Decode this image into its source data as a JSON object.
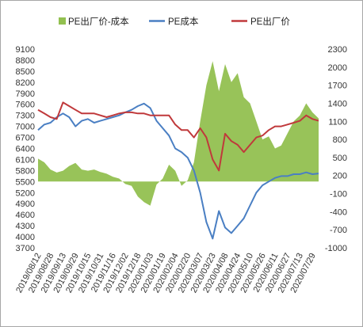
{
  "chart_data": {
    "type": "area+line",
    "title": "",
    "legend": {
      "position": "top",
      "entries": [
        {
          "label": "PE出厂价-成本",
          "kind": "area",
          "color": "#92c050"
        },
        {
          "label": "PE成本",
          "kind": "line",
          "color": "#4a7fc3"
        },
        {
          "label": "PE出厂价",
          "kind": "line",
          "color": "#c0393b"
        }
      ]
    },
    "left_axis": {
      "ylim": [
        3700,
        9100
      ],
      "ticks": [
        3700,
        4000,
        4300,
        4600,
        4900,
        5200,
        5500,
        5800,
        6100,
        6400,
        6700,
        7000,
        7300,
        7600,
        7900,
        8200,
        8500,
        8800,
        9100
      ]
    },
    "right_axis": {
      "ylim": [
        -1000,
        2300
      ],
      "ticks": [
        -1000,
        -700,
        -400,
        -100,
        200,
        500,
        800,
        1100,
        1400,
        1700,
        2000,
        2300
      ]
    },
    "x_axis": {
      "ticks": [
        "2019/08/12",
        "2019/08/28",
        "2019/09/13",
        "2019/09/29",
        "2019/10/15",
        "2019/10/31",
        "2019/11/16",
        "2019/12/02",
        "2019/12/18",
        "2020/01/03",
        "2020/01/19",
        "2020/02/04",
        "2020/02/20",
        "2020/03/07",
        "2020/03/23",
        "2020/04/08",
        "2020/04/24",
        "2020/05/10",
        "2020/05/26",
        "2020/06/11",
        "2020/06/27",
        "2020/07/13",
        "2020/07/29"
      ]
    },
    "series": [
      {
        "name": "PE出厂价-成本",
        "axis": "right",
        "type": "area",
        "color": "#92c050",
        "points": [
          [
            "2019/08/12",
            480
          ],
          [
            "2019/08/20",
            420
          ],
          [
            "2019/08/28",
            300
          ],
          [
            "2019/09/05",
            250
          ],
          [
            "2019/09/13",
            280
          ],
          [
            "2019/09/21",
            360
          ],
          [
            "2019/09/29",
            410
          ],
          [
            "2019/10/07",
            300
          ],
          [
            "2019/10/15",
            280
          ],
          [
            "2019/10/23",
            300
          ],
          [
            "2019/10/31",
            260
          ],
          [
            "2019/11/08",
            230
          ],
          [
            "2019/11/16",
            180
          ],
          [
            "2019/11/24",
            150
          ],
          [
            "2019/12/02",
            60
          ],
          [
            "2019/12/10",
            30
          ],
          [
            "2019/12/18",
            -150
          ],
          [
            "2019/12/26",
            -240
          ],
          [
            "2020/01/03",
            -300
          ],
          [
            "2020/01/11",
            50
          ],
          [
            "2020/01/19",
            150
          ],
          [
            "2020/01/27",
            380
          ],
          [
            "2020/02/04",
            280
          ],
          [
            "2020/02/12",
            30
          ],
          [
            "2020/02/20",
            120
          ],
          [
            "2020/02/28",
            420
          ],
          [
            "2020/03/07",
            1100
          ],
          [
            "2020/03/15",
            1700
          ],
          [
            "2020/03/23",
            2100
          ],
          [
            "2020/03/31",
            1600
          ],
          [
            "2020/04/08",
            2050
          ],
          [
            "2020/04/16",
            1750
          ],
          [
            "2020/04/24",
            1900
          ],
          [
            "2020/05/02",
            1500
          ],
          [
            "2020/05/10",
            1400
          ],
          [
            "2020/05/18",
            1100
          ],
          [
            "2020/05/26",
            800
          ],
          [
            "2020/06/03",
            850
          ],
          [
            "2020/06/11",
            650
          ],
          [
            "2020/06/19",
            700
          ],
          [
            "2020/06/27",
            900
          ],
          [
            "2020/07/05",
            1100
          ],
          [
            "2020/07/13",
            1200
          ],
          [
            "2020/07/21",
            1400
          ],
          [
            "2020/07/29",
            1250
          ],
          [
            "2020/08/06",
            1150
          ]
        ]
      },
      {
        "name": "PE成本",
        "axis": "left",
        "type": "line",
        "color": "#4a7fc3",
        "points": [
          [
            "2019/08/12",
            6900
          ],
          [
            "2019/08/20",
            7050
          ],
          [
            "2019/08/28",
            7100
          ],
          [
            "2019/09/05",
            7250
          ],
          [
            "2019/09/13",
            7350
          ],
          [
            "2019/09/21",
            7250
          ],
          [
            "2019/09/29",
            7000
          ],
          [
            "2019/10/07",
            7150
          ],
          [
            "2019/10/15",
            7200
          ],
          [
            "2019/10/23",
            7100
          ],
          [
            "2019/10/31",
            7150
          ],
          [
            "2019/11/08",
            7200
          ],
          [
            "2019/11/16",
            7250
          ],
          [
            "2019/11/24",
            7300
          ],
          [
            "2019/12/02",
            7380
          ],
          [
            "2019/12/10",
            7450
          ],
          [
            "2019/12/18",
            7550
          ],
          [
            "2019/12/26",
            7620
          ],
          [
            "2020/01/03",
            7500
          ],
          [
            "2020/01/11",
            7150
          ],
          [
            "2020/01/19",
            6950
          ],
          [
            "2020/01/27",
            6750
          ],
          [
            "2020/02/04",
            6400
          ],
          [
            "2020/02/12",
            6300
          ],
          [
            "2020/02/20",
            6150
          ],
          [
            "2020/02/28",
            5800
          ],
          [
            "2020/03/07",
            5200
          ],
          [
            "2020/03/15",
            4400
          ],
          [
            "2020/03/23",
            3950
          ],
          [
            "2020/03/31",
            4700
          ],
          [
            "2020/04/08",
            4250
          ],
          [
            "2020/04/16",
            4100
          ],
          [
            "2020/04/24",
            4300
          ],
          [
            "2020/05/02",
            4500
          ],
          [
            "2020/05/10",
            4850
          ],
          [
            "2020/05/18",
            5200
          ],
          [
            "2020/05/26",
            5400
          ],
          [
            "2020/06/03",
            5500
          ],
          [
            "2020/06/11",
            5600
          ],
          [
            "2020/06/19",
            5650
          ],
          [
            "2020/06/27",
            5650
          ],
          [
            "2020/07/05",
            5700
          ],
          [
            "2020/07/13",
            5700
          ],
          [
            "2020/07/21",
            5750
          ],
          [
            "2020/07/29",
            5700
          ],
          [
            "2020/08/06",
            5720
          ]
        ]
      },
      {
        "name": "PE出厂价",
        "axis": "left",
        "type": "line",
        "color": "#c0393b",
        "points": [
          [
            "2019/08/12",
            7450
          ],
          [
            "2019/08/20",
            7350
          ],
          [
            "2019/08/28",
            7250
          ],
          [
            "2019/09/05",
            7200
          ],
          [
            "2019/09/13",
            7650
          ],
          [
            "2019/09/21",
            7550
          ],
          [
            "2019/09/29",
            7450
          ],
          [
            "2019/10/07",
            7350
          ],
          [
            "2019/10/15",
            7350
          ],
          [
            "2019/10/23",
            7350
          ],
          [
            "2019/10/31",
            7300
          ],
          [
            "2019/11/08",
            7250
          ],
          [
            "2019/11/16",
            7300
          ],
          [
            "2019/11/24",
            7350
          ],
          [
            "2019/12/02",
            7380
          ],
          [
            "2019/12/10",
            7380
          ],
          [
            "2019/12/18",
            7350
          ],
          [
            "2019/12/26",
            7350
          ],
          [
            "2020/01/03",
            7300
          ],
          [
            "2020/01/11",
            7300
          ],
          [
            "2020/01/19",
            7300
          ],
          [
            "2020/01/27",
            7300
          ],
          [
            "2020/02/04",
            7050
          ],
          [
            "2020/02/12",
            6900
          ],
          [
            "2020/02/20",
            6900
          ],
          [
            "2020/02/28",
            6700
          ],
          [
            "2020/03/07",
            6950
          ],
          [
            "2020/03/15",
            6700
          ],
          [
            "2020/03/23",
            6100
          ],
          [
            "2020/03/31",
            5800
          ],
          [
            "2020/04/08",
            6800
          ],
          [
            "2020/04/16",
            6600
          ],
          [
            "2020/04/24",
            6500
          ],
          [
            "2020/05/02",
            6300
          ],
          [
            "2020/05/10",
            6500
          ],
          [
            "2020/05/18",
            6700
          ],
          [
            "2020/05/26",
            6750
          ],
          [
            "2020/06/03",
            6900
          ],
          [
            "2020/06/11",
            7000
          ],
          [
            "2020/06/19",
            7000
          ],
          [
            "2020/06/27",
            7050
          ],
          [
            "2020/07/05",
            7100
          ],
          [
            "2020/07/13",
            7150
          ],
          [
            "2020/07/21",
            7300
          ],
          [
            "2020/07/29",
            7200
          ],
          [
            "2020/08/06",
            7150
          ]
        ]
      }
    ]
  }
}
